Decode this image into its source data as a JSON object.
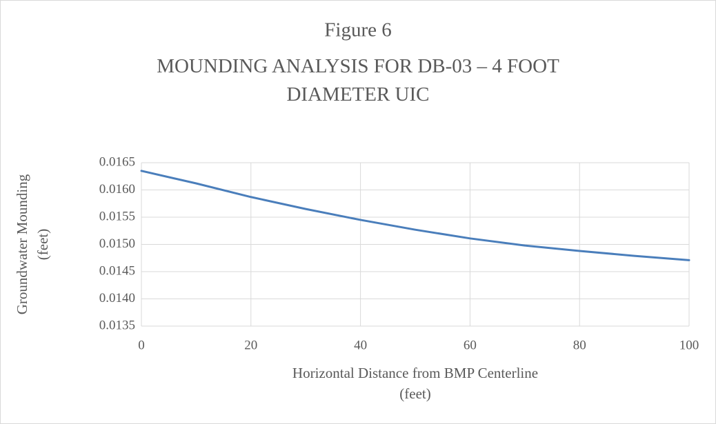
{
  "chart_data": {
    "type": "line",
    "title": "Figure 6",
    "subtitle": "MOUNDING ANALYSIS FOR DB-03 – 4 FOOT DIAMETER UIC",
    "xlabel": "Horizontal Distance from BMP Centerline (feet)",
    "ylabel": "Groundwater Mounding (feet)",
    "x": [
      0,
      10,
      20,
      30,
      40,
      50,
      60,
      70,
      80,
      90,
      100
    ],
    "series": [
      {
        "name": "Groundwater Mounding",
        "color": "#4a7ebb",
        "values": [
          0.01635,
          0.01612,
          0.01587,
          0.01565,
          0.01545,
          0.01527,
          0.01511,
          0.01498,
          0.01488,
          0.01479,
          0.01471
        ]
      }
    ],
    "xlim": [
      0,
      100
    ],
    "xticks": [
      0,
      20,
      40,
      60,
      80,
      100
    ],
    "ylim": [
      0.0135,
      0.0165
    ],
    "yticks": [
      0.0135,
      {
        "value": 0.014,
        "label": "0.0140"
      },
      0.0145,
      {
        "value": 0.015,
        "label": "0.0150"
      },
      0.0155,
      {
        "value": 0.016,
        "label": "0.0160"
      },
      0.0165
    ],
    "grid": true
  }
}
